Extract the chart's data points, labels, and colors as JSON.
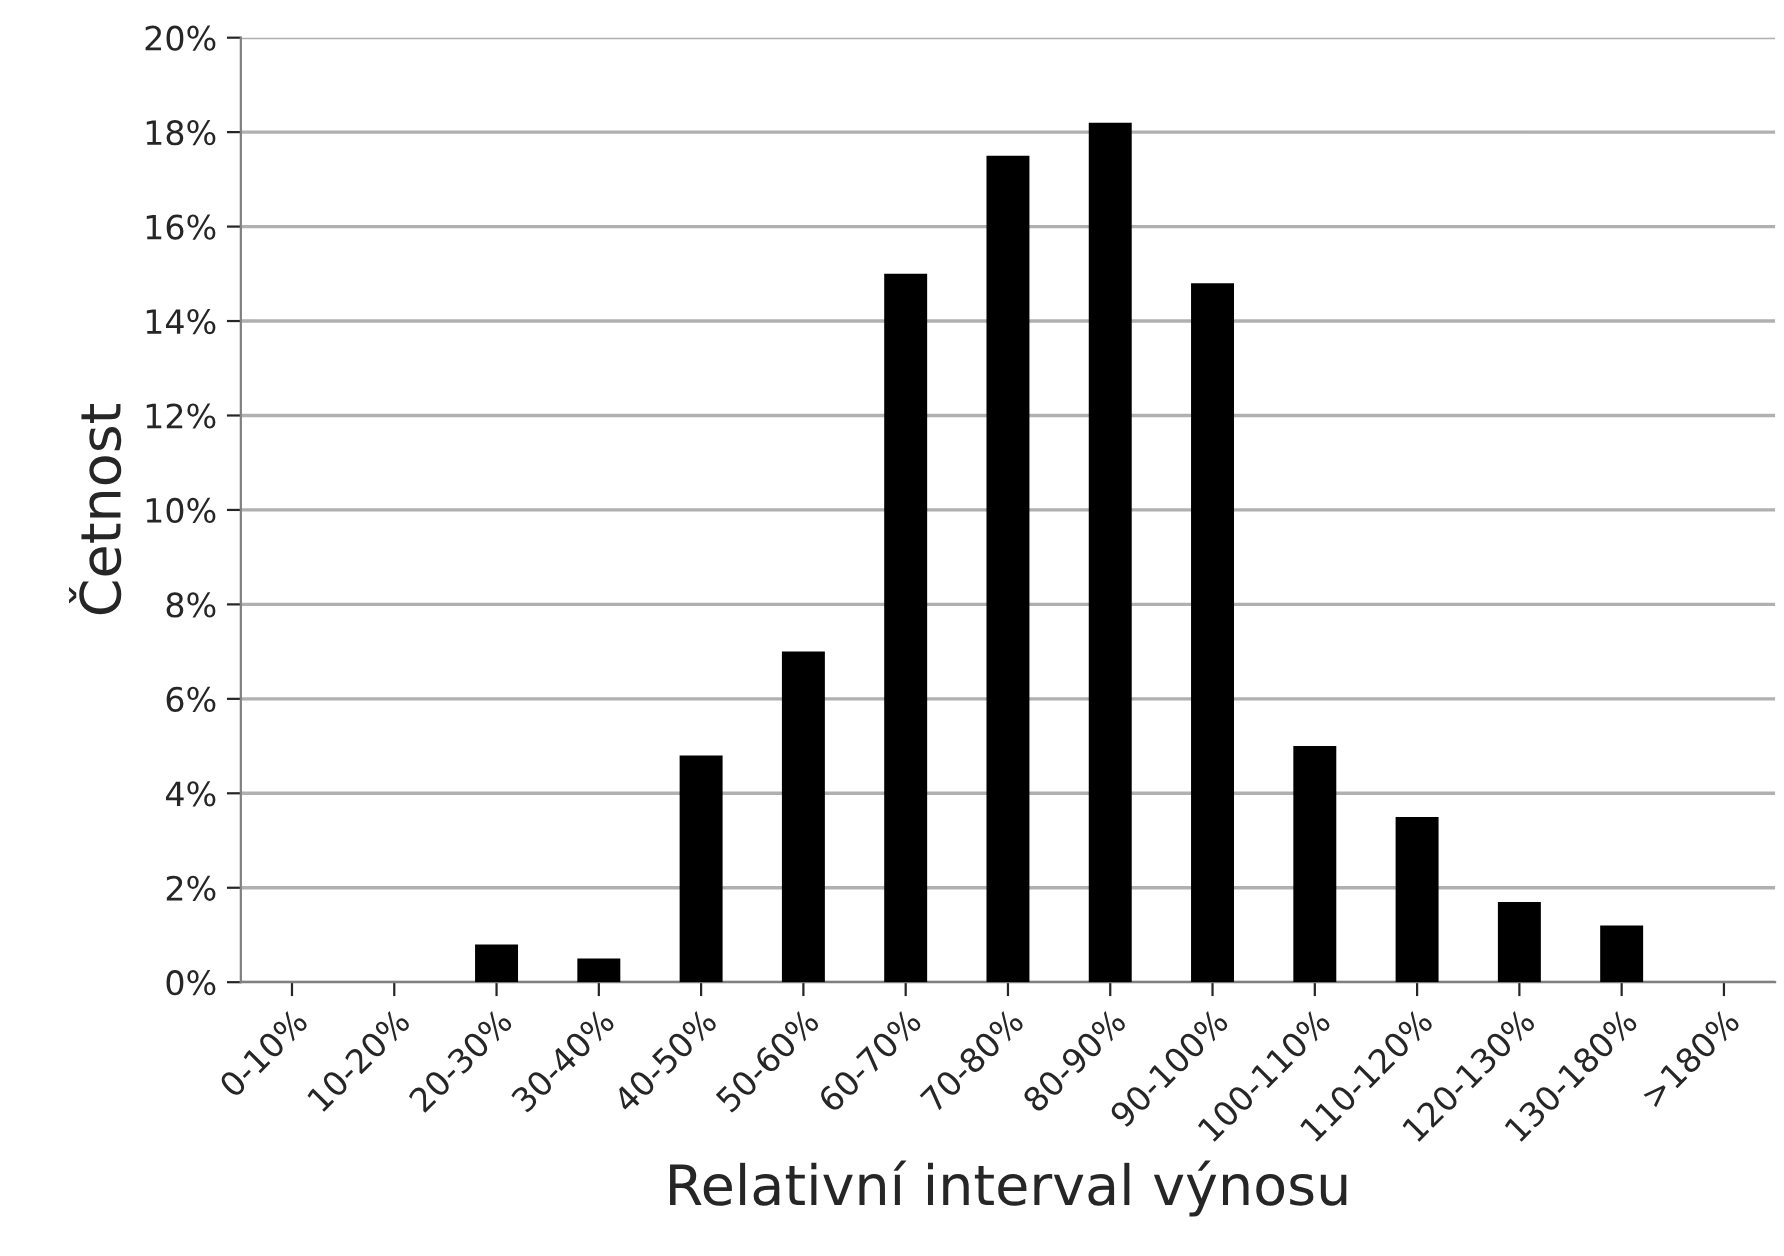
{
  "chart_data": {
    "type": "bar",
    "xlabel": "Relativní interval výnosu",
    "ylabel": "Četnost",
    "categories": [
      "0-10%",
      "10-20%",
      "20-30%",
      "30-40%",
      "40-50%",
      "50-60%",
      "60-70%",
      "70-80%",
      "80-90%",
      "90-100%",
      "100-110%",
      "110-120%",
      "120-130%",
      "130-180%",
      ">180%"
    ],
    "values": [
      0,
      0,
      0.8,
      0.5,
      4.8,
      7.0,
      15.0,
      17.5,
      18.2,
      14.8,
      5.0,
      3.5,
      1.7,
      1.2,
      0
    ],
    "color": "#000000",
    "ylim": [
      0,
      20
    ],
    "yticks": [
      {
        "value": 0,
        "label": "0%"
      },
      {
        "value": 2,
        "label": "2%"
      },
      {
        "value": 4,
        "label": "4%"
      },
      {
        "value": 6,
        "label": "6%"
      },
      {
        "value": 8,
        "label": "8%"
      },
      {
        "value": 10,
        "label": "10%"
      },
      {
        "value": 12,
        "label": "12%"
      },
      {
        "value": 14,
        "label": "14%"
      },
      {
        "value": 16,
        "label": "16%"
      },
      {
        "value": 18,
        "label": "18%"
      },
      {
        "value": 20,
        "label": "20%"
      }
    ],
    "grid": "y",
    "legend": false
  }
}
